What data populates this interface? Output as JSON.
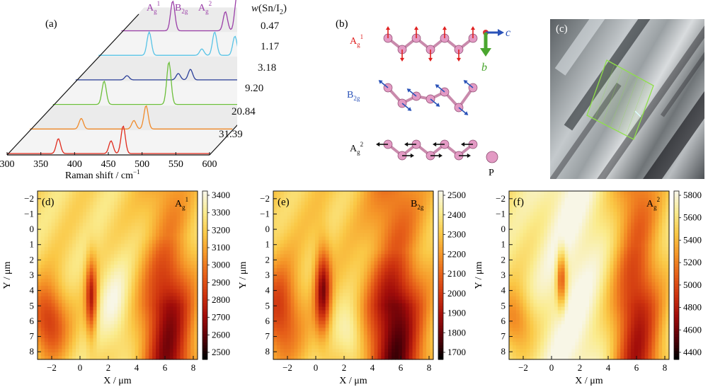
{
  "panel_labels": {
    "a": "(a)",
    "b": "(b)",
    "c": "(c)",
    "d": "(d)",
    "e": "(e)",
    "f": "(f)"
  },
  "raman": {
    "xlabel": "Raman shift / cm",
    "xlabel_sup": "−1",
    "xticks": [
      "300",
      "350",
      "400",
      "450",
      "500",
      "550",
      "600"
    ],
    "ratio_title_main": "w",
    "ratio_title_rest": "(Sn/I",
    "ratio_title_sub": "2",
    "ratio_title_end": ")",
    "peak_labels": [
      {
        "base": "A",
        "sub": "g",
        "sup": "1"
      },
      {
        "base": "B",
        "sub": "2g",
        "sup": ""
      },
      {
        "base": "A",
        "sub": "g",
        "sup": "2"
      }
    ],
    "ratios": [
      "0.47",
      "1.17",
      "3.18",
      "9.20",
      "20.84",
      "31.39"
    ],
    "colors": [
      "#9b3fa8",
      "#57c3e6",
      "#2b3f99",
      "#6cbf3a",
      "#f08a2a",
      "#e02a1c"
    ]
  },
  "structure": {
    "modes": [
      {
        "base": "A",
        "sub": "g",
        "sup": "1",
        "color": "#e02020"
      },
      {
        "base": "B",
        "sub": "2g",
        "sup": "",
        "color": "#2a52b8"
      },
      {
        "base": "A",
        "sub": "g",
        "sup": "2",
        "color": "#111111"
      }
    ],
    "axis_c": "c",
    "axis_b": "b",
    "atom_label": "P",
    "atom_color": "#e39ac4"
  },
  "maps": [
    {
      "name": "Ag1",
      "label": {
        "base": "A",
        "sub": "g",
        "sup": "1"
      },
      "cbticks": [
        "3400",
        "3300",
        "3200",
        "3100",
        "3000",
        "2900",
        "2800",
        "2700",
        "2600",
        "2500"
      ]
    },
    {
      "name": "B2g",
      "label": {
        "base": "B",
        "sub": "2g",
        "sup": ""
      },
      "cbticks": [
        "2500",
        "2400",
        "2300",
        "2200",
        "2100",
        "2000",
        "1900",
        "1800",
        "1700"
      ]
    },
    {
      "name": "Ag2",
      "label": {
        "base": "A",
        "sub": "g",
        "sup": "2"
      },
      "cbticks": [
        "5800",
        "5600",
        "5400",
        "5200",
        "5000",
        "4800",
        "4600",
        "4400"
      ]
    }
  ],
  "map_axes": {
    "xlabel": "X / μm",
    "ylabel": "Y / μm",
    "xticks": [
      "−2",
      "0",
      "2",
      "4",
      "6",
      "8"
    ],
    "yticks": [
      "−2",
      "−1",
      "0",
      "1",
      "2",
      "3",
      "4",
      "5",
      "6",
      "7",
      "8"
    ]
  }
}
